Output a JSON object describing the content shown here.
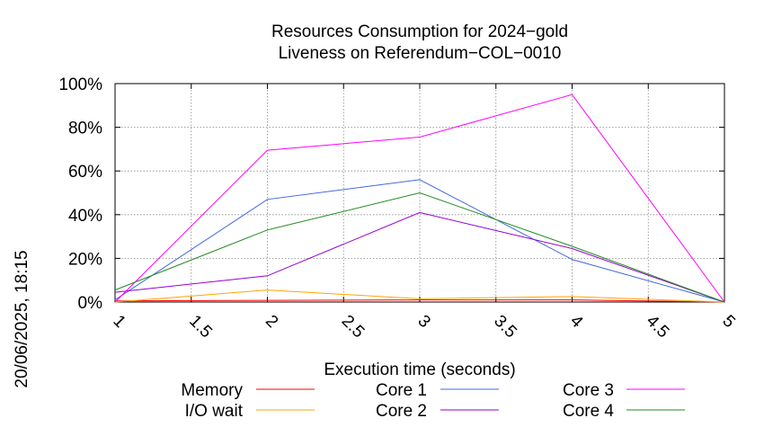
{
  "chart_data": {
    "type": "line",
    "title_line1": "Resources Consumption for 2024−gold",
    "title_line2": "Liveness on Referendum−COL−0010",
    "xlabel": "Execution time (seconds)",
    "side_label": "20/06/2025, 18:15",
    "xlim": [
      1,
      5
    ],
    "ylim": [
      0,
      100
    ],
    "x_ticks": [
      "1",
      "1.5",
      "2",
      "2.5",
      "3",
      "3.5",
      "4",
      "4.5",
      "5"
    ],
    "y_ticks": [
      "0%",
      "20%",
      "40%",
      "60%",
      "80%",
      "100%"
    ],
    "grid": true,
    "legend_position": "bottom",
    "x": [
      1,
      2,
      3,
      4,
      5
    ],
    "series": [
      {
        "name": "Memory",
        "color": "#ff0000",
        "values": [
          0.5,
          0.8,
          1.0,
          1.0,
          0
        ]
      },
      {
        "name": "I/O wait",
        "color": "#ffa500",
        "values": [
          0,
          5.5,
          1.5,
          2.5,
          0
        ]
      },
      {
        "name": "Core 1",
        "color": "#4169e1",
        "values": [
          1,
          47,
          56,
          19.5,
          0
        ]
      },
      {
        "name": "Core 2",
        "color": "#9400d3",
        "values": [
          4.5,
          12,
          41,
          24.5,
          0
        ]
      },
      {
        "name": "Core 3",
        "color": "#ff00ff",
        "values": [
          0,
          69.5,
          75.5,
          95,
          0
        ]
      },
      {
        "name": "Core 4",
        "color": "#228b22",
        "values": [
          5.5,
          33,
          50,
          25.5,
          0
        ]
      }
    ]
  }
}
